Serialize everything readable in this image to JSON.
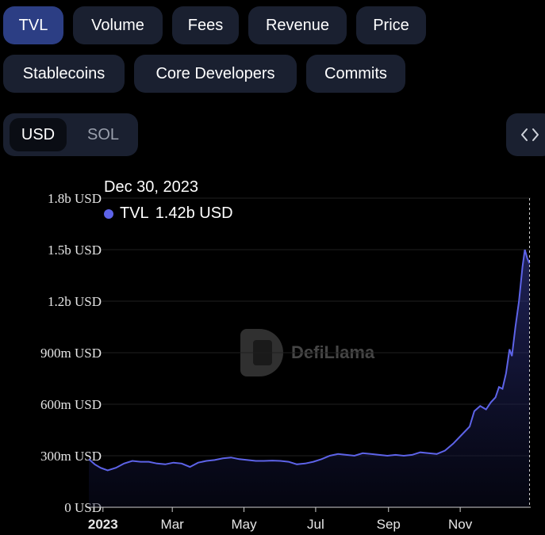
{
  "tabs": [
    {
      "label": "TVL",
      "active": true
    },
    {
      "label": "Volume",
      "active": false
    },
    {
      "label": "Fees",
      "active": false
    },
    {
      "label": "Revenue",
      "active": false
    },
    {
      "label": "Price",
      "active": false
    },
    {
      "label": "Stablecoins",
      "active": false
    },
    {
      "label": "Core Developers",
      "active": false
    },
    {
      "label": "Commits",
      "active": false
    }
  ],
  "currency_toggle": {
    "selected": "USD",
    "other": "SOL"
  },
  "embed_icon": "code-brackets-icon",
  "tooltip": {
    "date": "Dec 30, 2023",
    "series": "TVL",
    "value": "1.42b USD"
  },
  "watermark": "DefiLlama",
  "colors": {
    "line": "#5d63e8",
    "accent": "#2c3e84"
  },
  "chart_data": {
    "type": "area",
    "title": "",
    "xlabel": "",
    "ylabel": "",
    "y_unit": "USD",
    "ylim": [
      0,
      1800000000
    ],
    "y_ticks": [
      {
        "value": 0,
        "label": "0 USD"
      },
      {
        "value": 300000000,
        "label": "300m USD"
      },
      {
        "value": 600000000,
        "label": "600m USD"
      },
      {
        "value": 900000000,
        "label": "900m USD"
      },
      {
        "value": 1200000000,
        "label": "1.2b USD"
      },
      {
        "value": 1500000000,
        "label": "1.5b USD"
      },
      {
        "value": 1800000000,
        "label": "1.8b USD"
      }
    ],
    "x_ticks": [
      {
        "date": "2023-01-01",
        "label": "2023",
        "bold": true
      },
      {
        "date": "2023-03-01",
        "label": "Mar"
      },
      {
        "date": "2023-05-01",
        "label": "May"
      },
      {
        "date": "2023-07-01",
        "label": "Jul"
      },
      {
        "date": "2023-09-01",
        "label": "Sep"
      },
      {
        "date": "2023-11-01",
        "label": "Nov"
      }
    ],
    "xlim": [
      "2022-12-20",
      "2023-12-31"
    ],
    "series": [
      {
        "name": "TVL",
        "points": [
          [
            "2022-12-20",
            280000000
          ],
          [
            "2022-12-25",
            250000000
          ],
          [
            "2022-12-30",
            230000000
          ],
          [
            "2023-01-05",
            215000000
          ],
          [
            "2023-01-12",
            230000000
          ],
          [
            "2023-01-19",
            255000000
          ],
          [
            "2023-01-26",
            270000000
          ],
          [
            "2023-02-02",
            265000000
          ],
          [
            "2023-02-09",
            265000000
          ],
          [
            "2023-02-16",
            255000000
          ],
          [
            "2023-02-23",
            250000000
          ],
          [
            "2023-03-02",
            260000000
          ],
          [
            "2023-03-09",
            255000000
          ],
          [
            "2023-03-16",
            235000000
          ],
          [
            "2023-03-23",
            260000000
          ],
          [
            "2023-03-30",
            270000000
          ],
          [
            "2023-04-06",
            275000000
          ],
          [
            "2023-04-13",
            285000000
          ],
          [
            "2023-04-20",
            290000000
          ],
          [
            "2023-04-27",
            280000000
          ],
          [
            "2023-05-04",
            275000000
          ],
          [
            "2023-05-11",
            270000000
          ],
          [
            "2023-05-18",
            270000000
          ],
          [
            "2023-05-25",
            272000000
          ],
          [
            "2023-06-01",
            270000000
          ],
          [
            "2023-06-08",
            265000000
          ],
          [
            "2023-06-15",
            250000000
          ],
          [
            "2023-06-22",
            255000000
          ],
          [
            "2023-06-29",
            265000000
          ],
          [
            "2023-07-06",
            280000000
          ],
          [
            "2023-07-13",
            300000000
          ],
          [
            "2023-07-20",
            310000000
          ],
          [
            "2023-07-27",
            305000000
          ],
          [
            "2023-08-03",
            300000000
          ],
          [
            "2023-08-10",
            315000000
          ],
          [
            "2023-08-17",
            310000000
          ],
          [
            "2023-08-24",
            305000000
          ],
          [
            "2023-08-31",
            300000000
          ],
          [
            "2023-09-07",
            305000000
          ],
          [
            "2023-09-14",
            300000000
          ],
          [
            "2023-09-21",
            305000000
          ],
          [
            "2023-09-28",
            320000000
          ],
          [
            "2023-10-05",
            315000000
          ],
          [
            "2023-10-12",
            310000000
          ],
          [
            "2023-10-19",
            330000000
          ],
          [
            "2023-10-26",
            370000000
          ],
          [
            "2023-11-02",
            420000000
          ],
          [
            "2023-11-09",
            470000000
          ],
          [
            "2023-11-13",
            560000000
          ],
          [
            "2023-11-18",
            590000000
          ],
          [
            "2023-11-23",
            570000000
          ],
          [
            "2023-11-27",
            610000000
          ],
          [
            "2023-12-01",
            640000000
          ],
          [
            "2023-12-04",
            700000000
          ],
          [
            "2023-12-07",
            690000000
          ],
          [
            "2023-12-10",
            780000000
          ],
          [
            "2023-12-13",
            920000000
          ],
          [
            "2023-12-15",
            880000000
          ],
          [
            "2023-12-18",
            1050000000
          ],
          [
            "2023-12-21",
            1200000000
          ],
          [
            "2023-12-24",
            1400000000
          ],
          [
            "2023-12-26",
            1500000000
          ],
          [
            "2023-12-28",
            1450000000
          ],
          [
            "2023-12-30",
            1420000000
          ]
        ]
      }
    ]
  }
}
